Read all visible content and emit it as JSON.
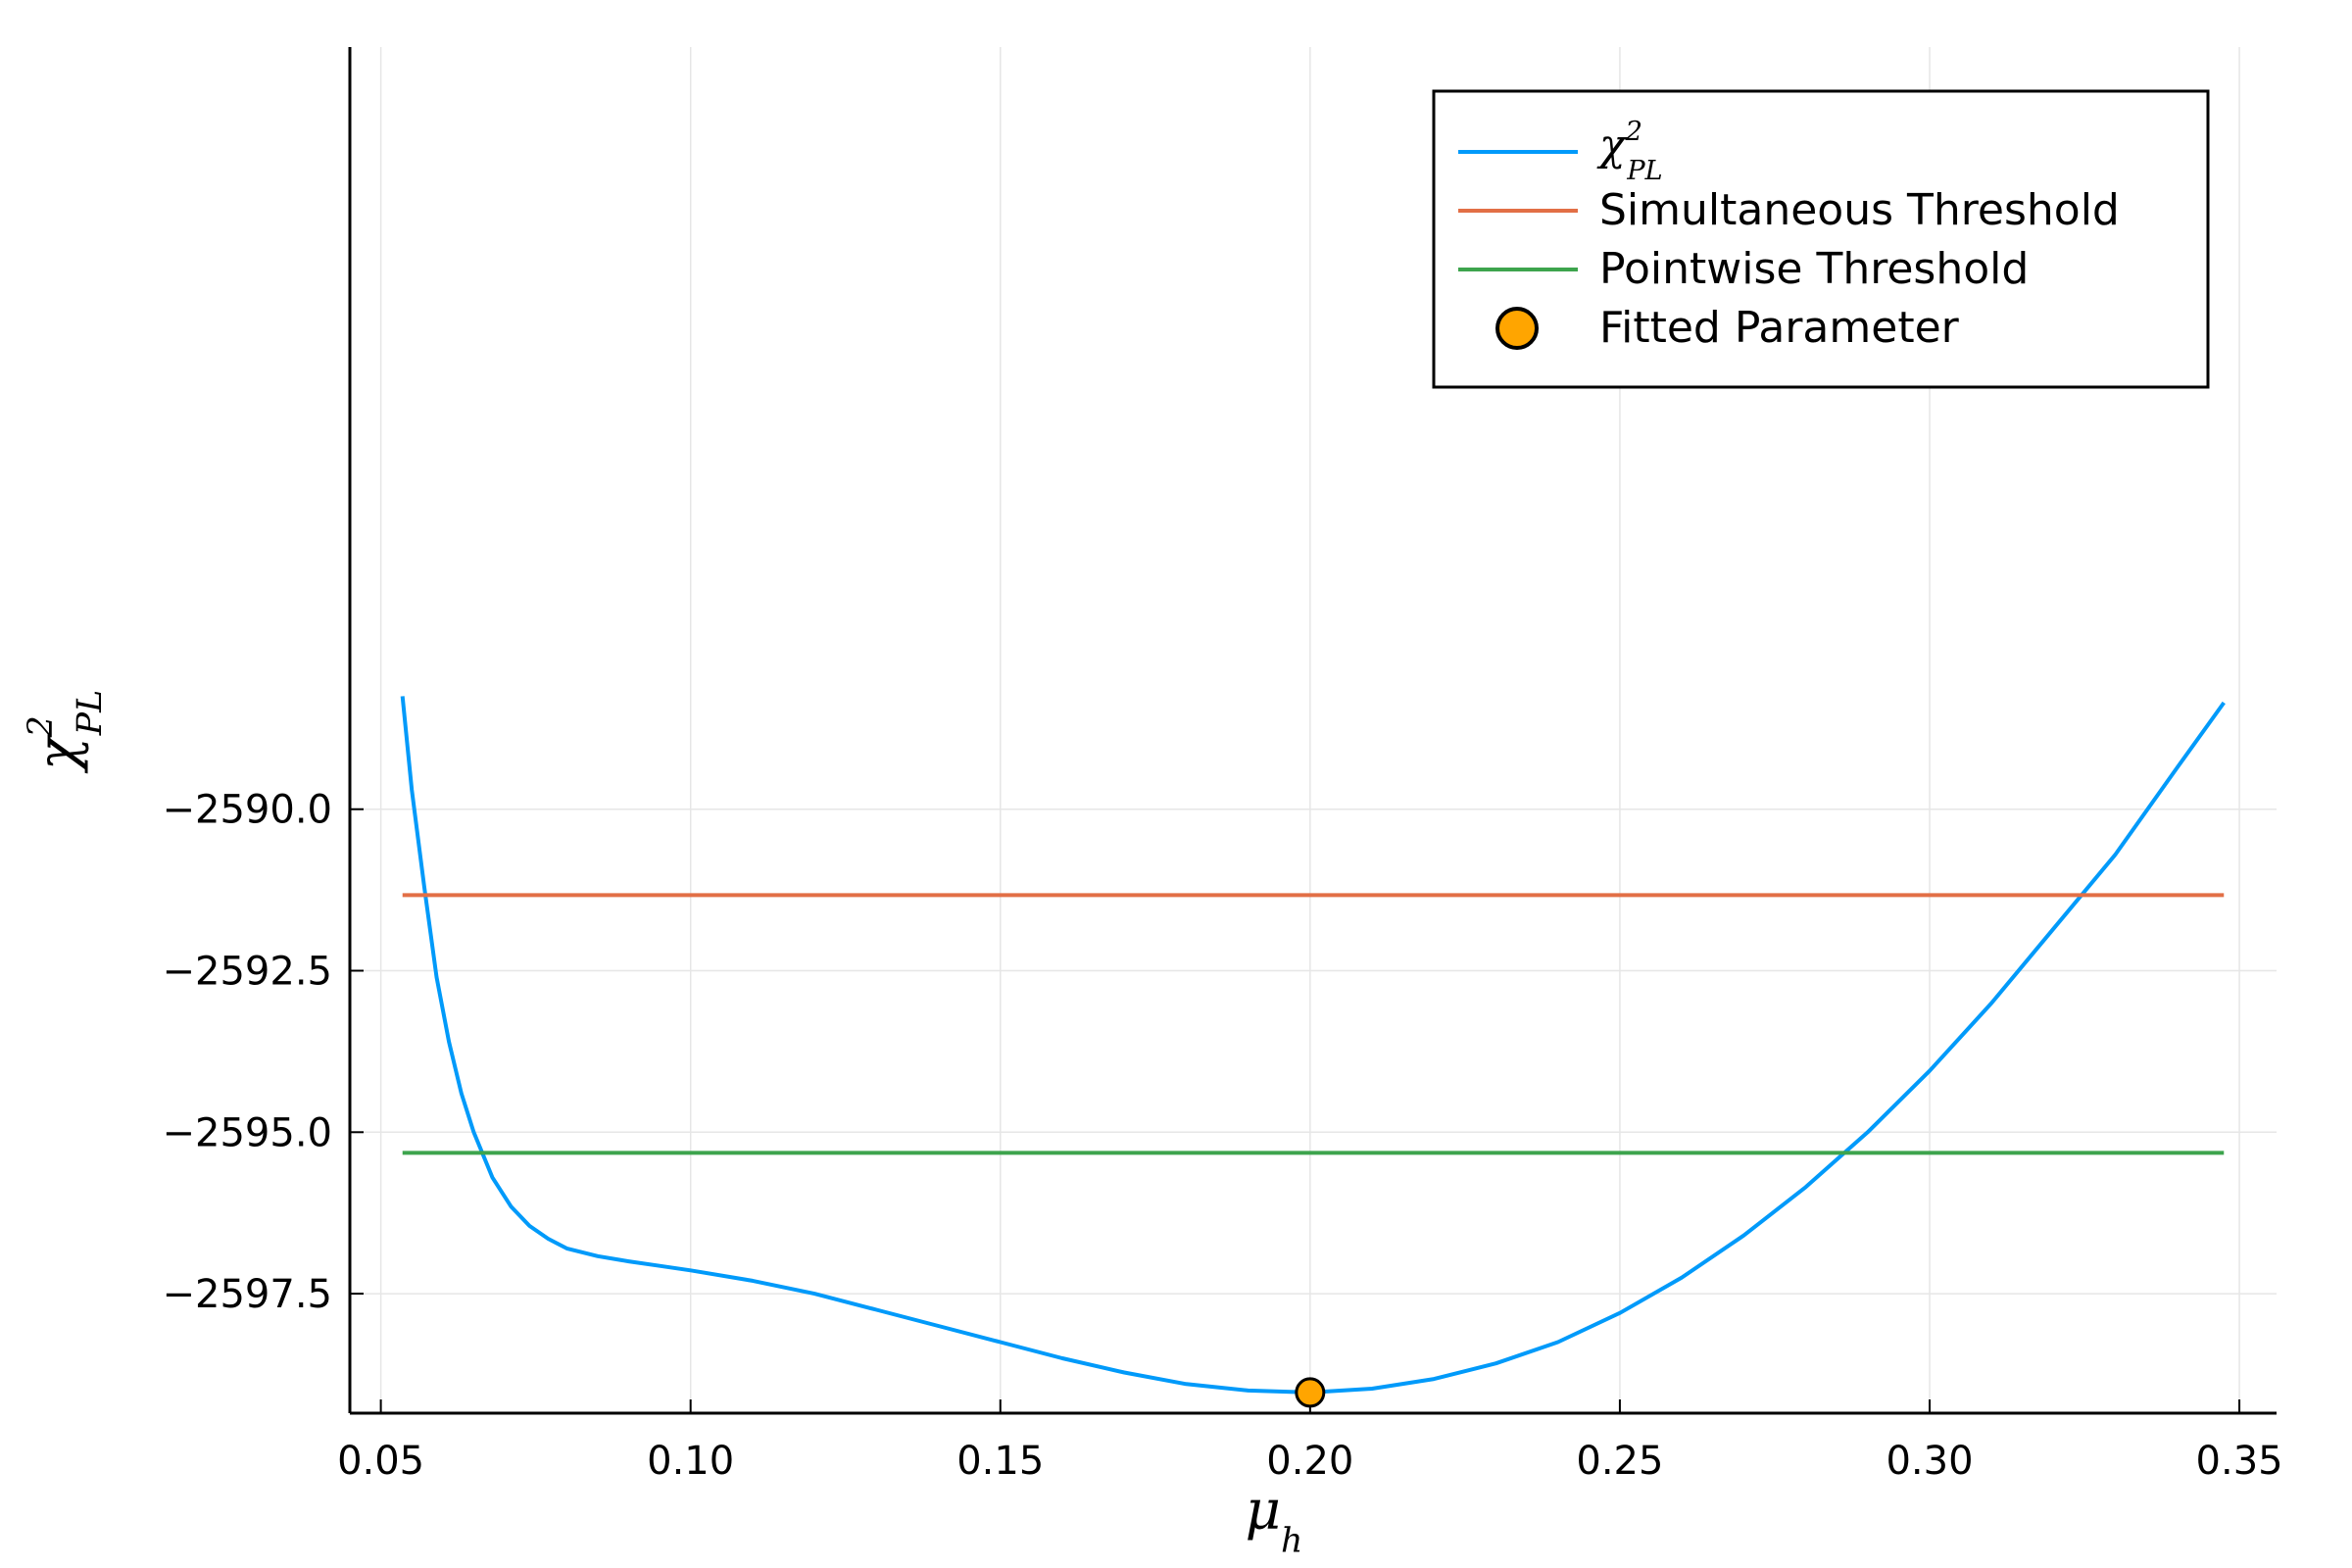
{
  "chart_data": {
    "type": "line",
    "xlabel": {
      "base": "μ",
      "sub": "h"
    },
    "ylabel": {
      "base": "χ",
      "sup": "2",
      "sub": "PL"
    },
    "xlim": [
      0.045,
      0.356
    ],
    "ylim": [
      -2599.35,
      -2578.2
    ],
    "xticks": [
      0.05,
      0.1,
      0.15,
      0.2,
      0.25,
      0.3,
      0.35
    ],
    "xtick_labels": [
      "0.05",
      "0.10",
      "0.15",
      "0.20",
      "0.25",
      "0.30",
      "0.35"
    ],
    "yticks": [
      -2590.0,
      -2592.5,
      -2595.0,
      -2597.5
    ],
    "ytick_labels": [
      "−2590.0",
      "−2592.5",
      "−2595.0",
      "−2597.5"
    ],
    "grid": true,
    "legend_position": "top-right",
    "series": [
      {
        "name": {
          "base": "χ",
          "sup": "2",
          "sub": "PL"
        },
        "kind": "line",
        "color": "#009AFA",
        "x": [
          0.0535,
          0.055,
          0.057,
          0.059,
          0.061,
          0.063,
          0.065,
          0.068,
          0.071,
          0.074,
          0.077,
          0.08,
          0.085,
          0.09,
          0.095,
          0.1,
          0.11,
          0.12,
          0.13,
          0.14,
          0.15,
          0.16,
          0.17,
          0.18,
          0.19,
          0.2,
          0.21,
          0.22,
          0.23,
          0.24,
          0.25,
          0.26,
          0.27,
          0.28,
          0.29,
          0.3,
          0.31,
          0.32,
          0.33,
          0.34,
          0.3475
        ],
        "y": [
          -2588.25,
          -2589.7,
          -2591.2,
          -2592.6,
          -2593.6,
          -2594.4,
          -2595.0,
          -2595.7,
          -2596.15,
          -2596.45,
          -2596.65,
          -2596.8,
          -2596.92,
          -2597.0,
          -2597.07,
          -2597.14,
          -2597.3,
          -2597.5,
          -2597.75,
          -2598.0,
          -2598.25,
          -2598.5,
          -2598.72,
          -2598.9,
          -2599.0,
          -2599.03,
          -2598.97,
          -2598.82,
          -2598.58,
          -2598.25,
          -2597.8,
          -2597.25,
          -2596.6,
          -2595.85,
          -2595.0,
          -2594.05,
          -2593.0,
          -2591.85,
          -2590.7,
          -2589.35,
          -2588.35
        ]
      },
      {
        "name": "Simultaneous Threshold",
        "kind": "hline",
        "color": "#E26F46",
        "x": [
          0.0535,
          0.3475
        ],
        "y": -2591.33
      },
      {
        "name": "Pointwise Threshold",
        "kind": "hline",
        "color": "#3DA44D",
        "x": [
          0.0535,
          0.3475
        ],
        "y": -2595.32
      },
      {
        "name": "Fitted Parameter",
        "kind": "scatter",
        "color": "#FFA500",
        "x": [
          0.2
        ],
        "y": [
          -2599.03
        ]
      }
    ]
  }
}
